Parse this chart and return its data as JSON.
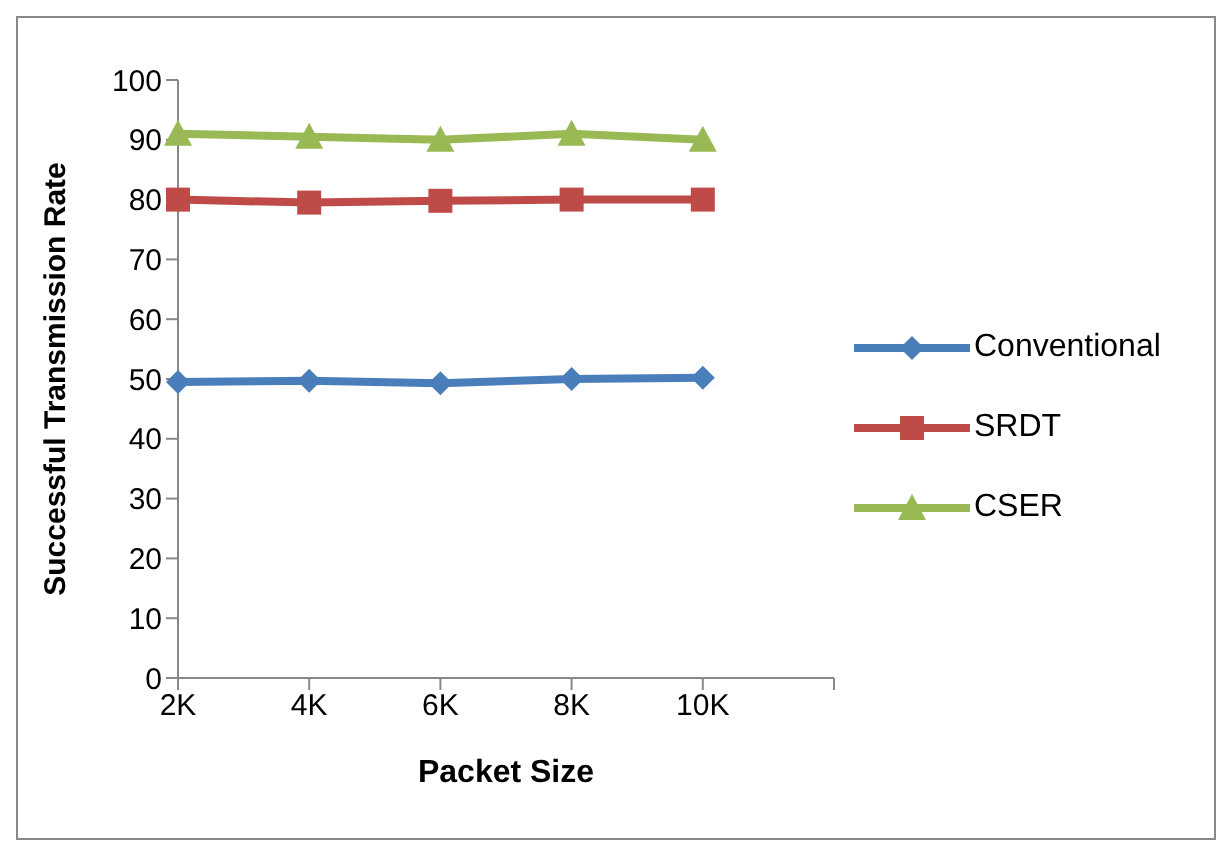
{
  "chart_data": {
    "type": "line",
    "xlabel": "Packet Size",
    "ylabel": "Successful Transmission Rate",
    "categories": [
      "2K",
      "4K",
      "6K",
      "8K",
      "10K",
      null
    ],
    "series": [
      {
        "name": "Conventional",
        "color": "#4a7ebb",
        "marker": "diamond",
        "values": [
          49.5,
          49.7,
          49.3,
          50,
          50.2,
          null
        ]
      },
      {
        "name": "SRDT",
        "color": "#be4b48",
        "marker": "square",
        "values": [
          80,
          79.5,
          79.8,
          80,
          80,
          null
        ]
      },
      {
        "name": "CSER",
        "color": "#98b954",
        "marker": "triangle",
        "values": [
          91,
          90.5,
          90,
          91,
          90,
          null
        ]
      }
    ],
    "ylim": [
      0,
      100
    ],
    "yticks": [
      0,
      10,
      20,
      30,
      40,
      50,
      60,
      70,
      80,
      90,
      100
    ],
    "grid": false,
    "legend": "right"
  }
}
